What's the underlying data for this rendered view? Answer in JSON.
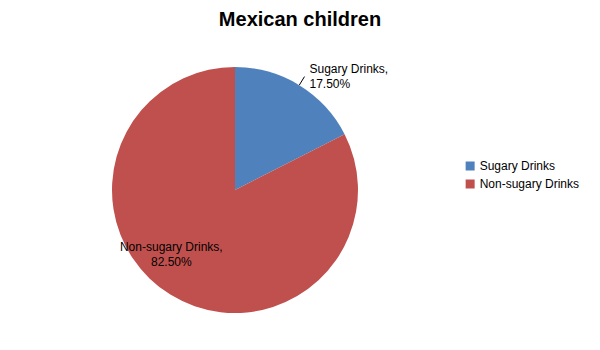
{
  "chart_data": {
    "type": "pie",
    "title": "Mexican children",
    "categories": [
      "Sugary Drinks",
      "Non-sugary Drinks"
    ],
    "values": [
      17.5,
      82.5
    ],
    "value_labels": [
      "Sugary Drinks,17.50%",
      "Non-sugary Drinks,82.50%"
    ],
    "colors": [
      "#4f81bd",
      "#c0504d"
    ],
    "data_labels": true,
    "legend": "right"
  }
}
